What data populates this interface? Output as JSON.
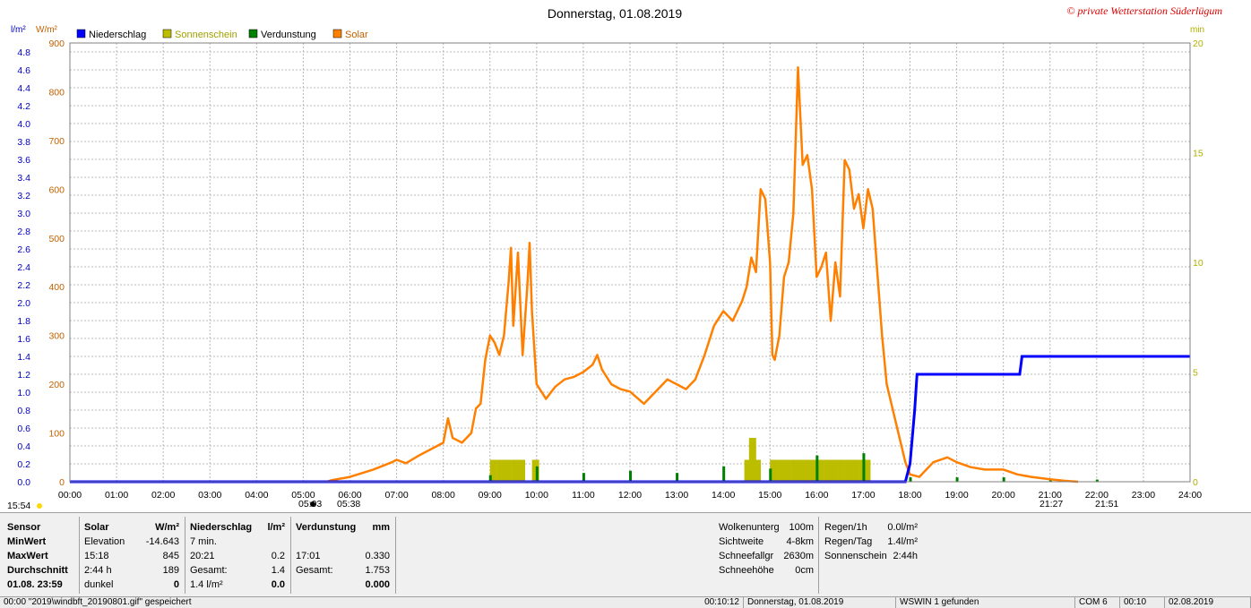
{
  "title": "Donnerstag, 01.08.2019",
  "copyright": "© private Wetterstation Süderlügum",
  "axis": {
    "left_unit1": "l/m²",
    "left_unit2": "W/m²",
    "right_unit": "min",
    "rain_ticks": [
      "0.0",
      "0.2",
      "0.4",
      "0.6",
      "0.8",
      "1.0",
      "1.2",
      "1.4",
      "1.6",
      "1.8",
      "2.0",
      "2.2",
      "2.4",
      "2.6",
      "2.8",
      "3.0",
      "3.2",
      "3.4",
      "3.6",
      "3.8",
      "4.0",
      "4.2",
      "4.4",
      "4.6",
      "4.8"
    ],
    "solar_ticks": [
      "0",
      "100",
      "200",
      "300",
      "400",
      "500",
      "600",
      "700",
      "800",
      "900"
    ],
    "min_ticks": [
      "0",
      "5",
      "10",
      "15",
      "20"
    ],
    "time_ticks": [
      "00:00",
      "01:00",
      "02:00",
      "03:00",
      "04:00",
      "05:00",
      "06:00",
      "07:00",
      "08:00",
      "09:00",
      "10:00",
      "11:00",
      "12:00",
      "13:00",
      "14:00",
      "15:00",
      "16:00",
      "17:00",
      "18:00",
      "19:00",
      "20:00",
      "21:00",
      "22:00",
      "23:00",
      "24:00"
    ]
  },
  "legend": [
    {
      "label": "Niederschlag",
      "color": "#0000ff"
    },
    {
      "label": "Sonnenschein",
      "color": "#bdbd00"
    },
    {
      "label": "Verdunstung",
      "color": "#008000"
    },
    {
      "label": "Solar",
      "color": "#ff8000"
    }
  ],
  "markers": {
    "left_time": "15:54",
    "sunrise_a": "05:03",
    "sunrise_b": "05:38",
    "sunset_a": "21:27",
    "sunset_b": "21:51"
  },
  "chart_data": {
    "type": "line",
    "title": "Donnerstag, 01.08.2019",
    "x_unit": "hour",
    "xlim": [
      0,
      24
    ],
    "ylim_left_rain": [
      0,
      4.9
    ],
    "ylim_left_solar": [
      0,
      900
    ],
    "ylim_right_min": [
      0,
      20
    ],
    "series": [
      {
        "name": "Solar",
        "color": "#ff8000",
        "axis": "W/m²",
        "points": [
          [
            5.5,
            0
          ],
          [
            5.6,
            3
          ],
          [
            6.0,
            10
          ],
          [
            6.5,
            25
          ],
          [
            6.9,
            40
          ],
          [
            7.0,
            45
          ],
          [
            7.2,
            38
          ],
          [
            7.5,
            55
          ],
          [
            7.8,
            70
          ],
          [
            8.0,
            80
          ],
          [
            8.1,
            130
          ],
          [
            8.2,
            90
          ],
          [
            8.4,
            80
          ],
          [
            8.6,
            100
          ],
          [
            8.7,
            150
          ],
          [
            8.8,
            160
          ],
          [
            8.9,
            250
          ],
          [
            9.0,
            300
          ],
          [
            9.1,
            285
          ],
          [
            9.2,
            260
          ],
          [
            9.3,
            300
          ],
          [
            9.4,
            410
          ],
          [
            9.45,
            480
          ],
          [
            9.5,
            320
          ],
          [
            9.6,
            470
          ],
          [
            9.7,
            260
          ],
          [
            9.8,
            400
          ],
          [
            9.85,
            490
          ],
          [
            9.9,
            350
          ],
          [
            10.0,
            200
          ],
          [
            10.2,
            170
          ],
          [
            10.4,
            195
          ],
          [
            10.6,
            210
          ],
          [
            10.8,
            215
          ],
          [
            11.0,
            225
          ],
          [
            11.2,
            240
          ],
          [
            11.3,
            260
          ],
          [
            11.4,
            230
          ],
          [
            11.6,
            200
          ],
          [
            11.8,
            190
          ],
          [
            12.0,
            185
          ],
          [
            12.3,
            160
          ],
          [
            12.6,
            190
          ],
          [
            12.8,
            210
          ],
          [
            13.0,
            200
          ],
          [
            13.2,
            190
          ],
          [
            13.4,
            210
          ],
          [
            13.6,
            260
          ],
          [
            13.8,
            320
          ],
          [
            14.0,
            350
          ],
          [
            14.2,
            330
          ],
          [
            14.4,
            370
          ],
          [
            14.5,
            400
          ],
          [
            14.6,
            460
          ],
          [
            14.7,
            430
          ],
          [
            14.8,
            600
          ],
          [
            14.9,
            580
          ],
          [
            15.0,
            450
          ],
          [
            15.05,
            260
          ],
          [
            15.1,
            250
          ],
          [
            15.2,
            300
          ],
          [
            15.3,
            420
          ],
          [
            15.4,
            450
          ],
          [
            15.5,
            550
          ],
          [
            15.6,
            850
          ],
          [
            15.7,
            650
          ],
          [
            15.8,
            670
          ],
          [
            15.9,
            600
          ],
          [
            16.0,
            420
          ],
          [
            16.1,
            440
          ],
          [
            16.2,
            470
          ],
          [
            16.3,
            330
          ],
          [
            16.4,
            450
          ],
          [
            16.5,
            380
          ],
          [
            16.6,
            660
          ],
          [
            16.7,
            640
          ],
          [
            16.8,
            560
          ],
          [
            16.9,
            590
          ],
          [
            17.0,
            520
          ],
          [
            17.1,
            600
          ],
          [
            17.2,
            560
          ],
          [
            17.3,
            430
          ],
          [
            17.4,
            300
          ],
          [
            17.5,
            200
          ],
          [
            17.6,
            160
          ],
          [
            17.8,
            80
          ],
          [
            17.9,
            40
          ],
          [
            18.0,
            15
          ],
          [
            18.2,
            10
          ],
          [
            18.5,
            40
          ],
          [
            18.8,
            50
          ],
          [
            19.0,
            40
          ],
          [
            19.3,
            30
          ],
          [
            19.6,
            25
          ],
          [
            20.0,
            25
          ],
          [
            20.3,
            15
          ],
          [
            20.6,
            10
          ],
          [
            21.0,
            5
          ],
          [
            21.3,
            2
          ],
          [
            21.6,
            0
          ]
        ]
      },
      {
        "name": "Niederschlag",
        "color": "#0000ff",
        "axis": "l/m²",
        "points": [
          [
            0,
            0
          ],
          [
            17.9,
            0
          ],
          [
            18.0,
            0.2
          ],
          [
            18.1,
            0.8
          ],
          [
            18.15,
            1.2
          ],
          [
            20.35,
            1.2
          ],
          [
            20.4,
            1.4
          ],
          [
            24,
            1.4
          ]
        ]
      },
      {
        "name": "Sonnenschein",
        "color": "#bdbd00",
        "axis": "min",
        "bars": [
          [
            9.0,
            1.0
          ],
          [
            9.15,
            1.0
          ],
          [
            9.3,
            1.0
          ],
          [
            9.45,
            1.0
          ],
          [
            9.6,
            1.0
          ],
          [
            9.9,
            1.0
          ],
          [
            14.45,
            1.0
          ],
          [
            14.55,
            2.0
          ],
          [
            14.65,
            1.0
          ],
          [
            15.0,
            1.0
          ],
          [
            15.15,
            1.0
          ],
          [
            15.3,
            1.0
          ],
          [
            15.45,
            1.0
          ],
          [
            15.6,
            1.0
          ],
          [
            15.75,
            1.0
          ],
          [
            15.85,
            1.0
          ],
          [
            16.0,
            1.0
          ],
          [
            16.15,
            1.0
          ],
          [
            16.3,
            1.0
          ],
          [
            16.45,
            1.0
          ],
          [
            16.6,
            1.0
          ],
          [
            16.75,
            1.0
          ],
          [
            16.9,
            1.0
          ],
          [
            17.0,
            1.0
          ]
        ]
      },
      {
        "name": "Verdunstung",
        "color": "#008000",
        "axis": "min",
        "bars": [
          [
            9.0,
            0.3
          ],
          [
            10.0,
            0.7
          ],
          [
            11.0,
            0.4
          ],
          [
            12.0,
            0.5
          ],
          [
            13.0,
            0.4
          ],
          [
            14.0,
            0.7
          ],
          [
            15.0,
            0.6
          ],
          [
            16.0,
            1.2
          ],
          [
            17.0,
            1.3
          ],
          [
            18.0,
            0.2
          ],
          [
            19.0,
            0.2
          ],
          [
            20.0,
            0.2
          ],
          [
            21.0,
            0.1
          ],
          [
            22.0,
            0.1
          ]
        ]
      }
    ]
  },
  "panel": {
    "col1": [
      "Sensor",
      "MinWert",
      "MaxWert",
      "Durchschnitt",
      "01.08. 23:59"
    ],
    "solar": {
      "header": "Solar",
      "unit": "W/m²",
      "rows": [
        [
          "Elevation",
          "-14.643"
        ],
        [
          " 15:18",
          "845"
        ],
        [
          "2:44 h",
          "189"
        ],
        [
          "dunkel",
          "0"
        ]
      ]
    },
    "rain": {
      "header": "Niederschlag",
      "unit": "l/m²",
      "rows": [
        [
          "7 min.",
          ""
        ],
        [
          " 20:21",
          "0.2"
        ],
        [
          "Gesamt:",
          "1.4"
        ],
        [
          " 1.4 l/m²",
          "0.0"
        ]
      ]
    },
    "evap": {
      "header": "Verdunstung",
      "unit": "mm",
      "rows": [
        [
          "",
          ""
        ],
        [
          " 17:01",
          "0.330"
        ],
        [
          "Gesamt:",
          "1.753"
        ],
        [
          "",
          "0.000"
        ]
      ]
    },
    "weather": [
      [
        "Wolkenunterg",
        "100m"
      ],
      [
        "Sichtweite",
        "4-8km"
      ],
      [
        "Schneefallgr",
        "2630m"
      ],
      [
        "Schneehöhe",
        "0cm"
      ]
    ],
    "rainstats": [
      [
        "Regen/1h",
        "0.0l/m²"
      ],
      [
        "Regen/Tag",
        "1.4l/m²"
      ],
      [
        "Sonnenschein",
        "2:44h"
      ]
    ]
  },
  "statusbar": {
    "message": "00:00 \"2019\\windbft_20190801.gif\" gespeichert",
    "time": "00:10:12",
    "date_label": "Donnerstag, 01.08.2019",
    "wswin": "WSWIN 1 gefunden",
    "com": "COM 6",
    "clock": "00:10",
    "date": "02.08.2019"
  }
}
